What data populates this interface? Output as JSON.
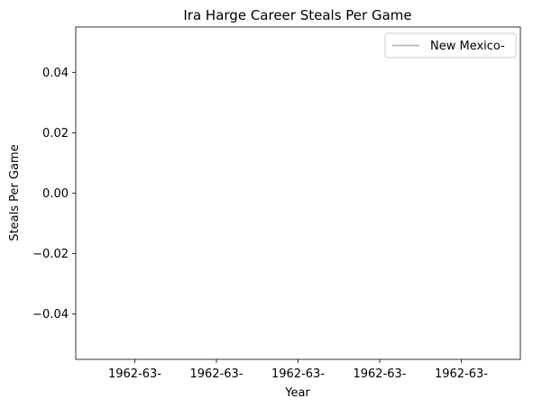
{
  "chart_data": {
    "type": "line",
    "title": "Ira Harge Career Steals Per Game",
    "xlabel": "Year",
    "ylabel": "Steals Per Game",
    "categories": [
      "1962-63-",
      "1962-63-",
      "1962-63-",
      "1962-63-",
      "1962-63-"
    ],
    "series": [
      {
        "name": "New Mexico-",
        "values": [
          0,
          0,
          0,
          0,
          0
        ],
        "color": "#bfbfbf"
      }
    ],
    "ylim": [
      -0.055,
      0.055
    ],
    "yticks": [
      -0.04,
      -0.02,
      0.0,
      0.02,
      0.04
    ],
    "ytick_labels": [
      "−0.04",
      "−0.02",
      "0.00",
      "0.02",
      "0.04"
    ],
    "grid": false,
    "legend_position": "top-right"
  }
}
